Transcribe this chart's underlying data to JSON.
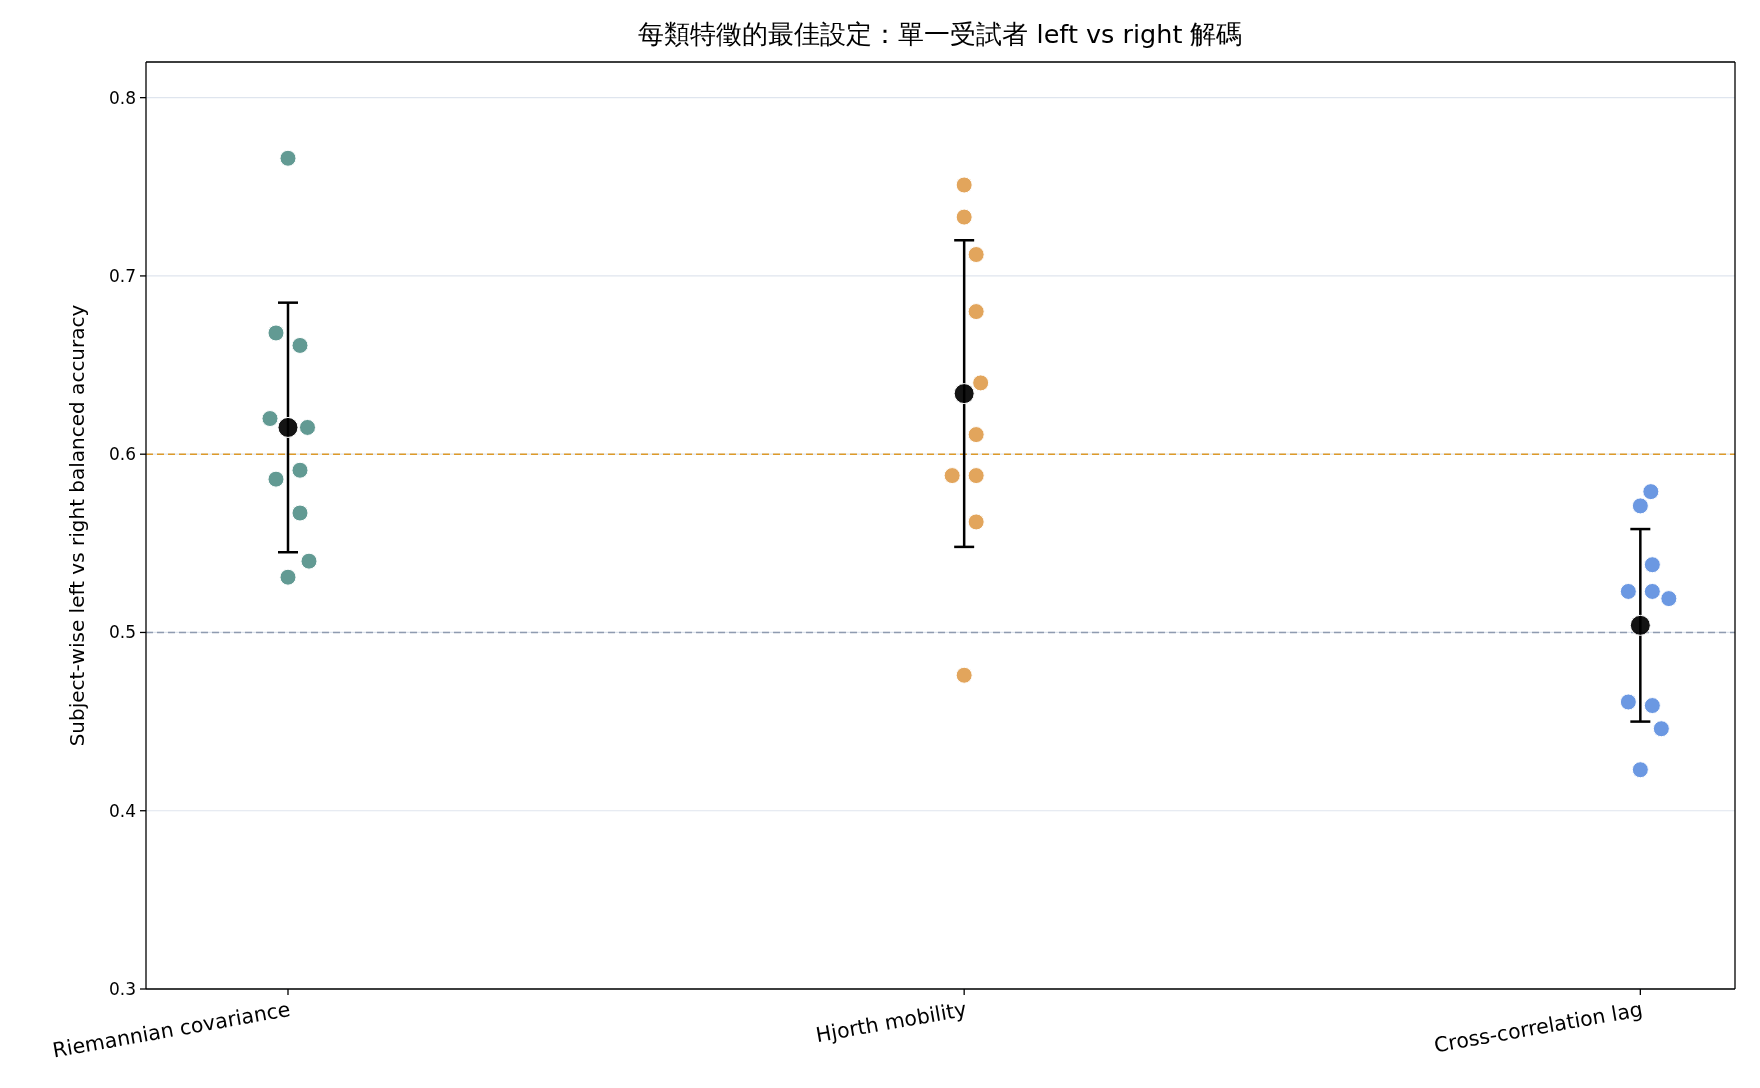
{
  "chart_data": {
    "type": "scatter",
    "title": "每類特徵的最佳設定：單一受試者 left vs right 解碼",
    "ylabel": "Subject-wise left vs right balanced accuracy",
    "categories": [
      "Riemannian covariance",
      "Hjorth mobility",
      "Cross-correlation lag"
    ],
    "ylim": [
      0.3,
      0.82
    ],
    "yticks": [
      0.3,
      0.4,
      0.5,
      0.6,
      0.7,
      0.8
    ],
    "grid": "y",
    "marker": "circle",
    "ref_lines": [
      {
        "axis": "y",
        "value": 0.6,
        "color": "#dd9a2a",
        "line_style": "dashed"
      },
      {
        "axis": "y",
        "value": 0.5,
        "color": "#8f9bb0",
        "line_style": "dashed"
      }
    ],
    "series": [
      {
        "color": "#55918a",
        "x": [
          "Riemannian covariance",
          "Riemannian covariance",
          "Riemannian covariance",
          "Riemannian covariance",
          "Riemannian covariance",
          "Riemannian covariance",
          "Riemannian covariance",
          "Riemannian covariance",
          "Riemannian covariance",
          "Riemannian covariance"
        ],
        "values": [
          0.766,
          0.615,
          0.62,
          0.661,
          0.668,
          0.591,
          0.586,
          0.567,
          0.54,
          0.531
        ]
      },
      {
        "color": "#e09d4e",
        "x": [
          "Hjorth mobility",
          "Hjorth mobility",
          "Hjorth mobility",
          "Hjorth mobility",
          "Hjorth mobility",
          "Hjorth mobility",
          "Hjorth mobility",
          "Hjorth mobility",
          "Hjorth mobility",
          "Hjorth mobility"
        ],
        "values": [
          0.751,
          0.733,
          0.712,
          0.68,
          0.64,
          0.611,
          0.588,
          0.588,
          0.562,
          0.476
        ]
      },
      {
        "color": "#5e8fe0",
        "x": [
          "Cross-correlation lag",
          "Cross-correlation lag",
          "Cross-correlation lag",
          "Cross-correlation lag",
          "Cross-correlation lag",
          "Cross-correlation lag",
          "Cross-correlation lag",
          "Cross-correlation lag",
          "Cross-correlation lag",
          "Cross-correlation lag"
        ],
        "values": [
          0.571,
          0.579,
          0.538,
          0.523,
          0.523,
          0.519,
          0.459,
          0.461,
          0.446,
          0.423
        ]
      },
      {
        "color": "#000000",
        "x": [
          "Riemannian covariance",
          "Hjorth mobility",
          "Cross-correlation lag"
        ],
        "values": [
          0.615,
          0.634,
          0.504
        ],
        "errors": [
          0.07,
          0.086,
          0.054
        ]
      }
    ]
  }
}
